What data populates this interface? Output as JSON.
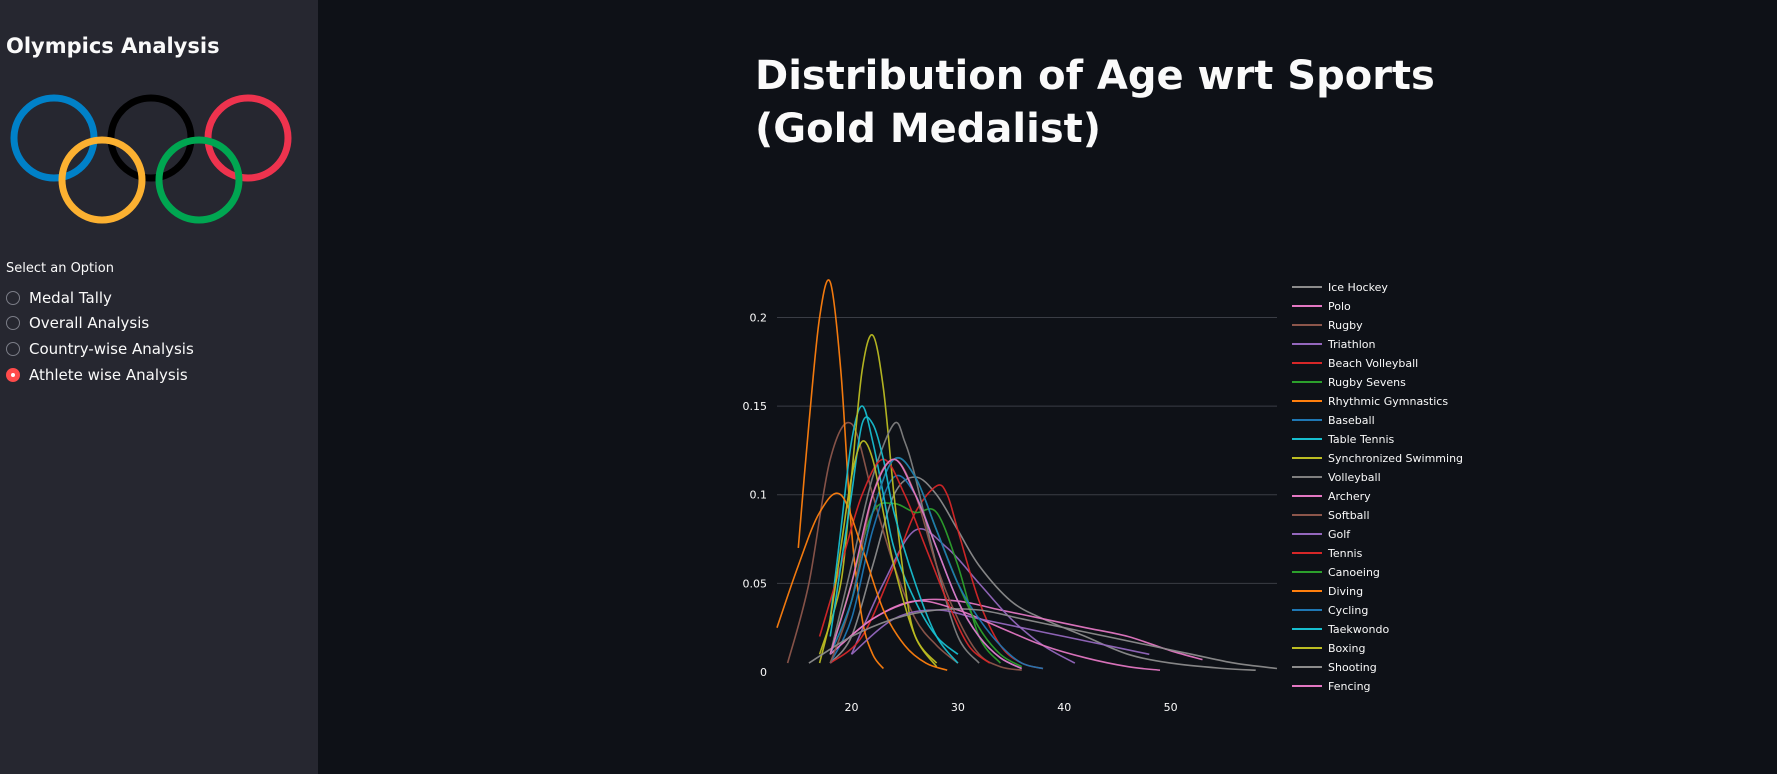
{
  "sidebar": {
    "title": "Olympics Analysis",
    "radio_label": "Select an Option",
    "options": [
      "Medal Tally",
      "Overall Analysis",
      "Country-wise Analysis",
      "Athlete wise Analysis"
    ],
    "selected_index": 3,
    "accent_color": "#ff4b4b"
  },
  "main": {
    "title": "Distribution of Age wrt Sports (Gold Medalist)"
  },
  "chart_data": {
    "type": "line",
    "title": "",
    "xlabel": "",
    "ylabel": "",
    "xlim": [
      13,
      60
    ],
    "ylim": [
      0,
      0.22
    ],
    "x_ticks": [
      20,
      30,
      40,
      50
    ],
    "y_ticks": [
      0,
      0.05,
      0.1,
      0.15,
      0.2
    ],
    "y_tick_labels": [
      "0",
      "0.05",
      "0.1",
      "0.15",
      "0.2"
    ],
    "grid": true,
    "legend_position": "right",
    "series": [
      {
        "name": "Ice Hockey",
        "color": "#8c8c8c",
        "x": [
          18,
          20,
          22,
          24,
          26,
          28,
          30,
          32,
          35,
          38,
          42,
          46,
          50,
          55,
          58
        ],
        "y": [
          0.005,
          0.02,
          0.06,
          0.1,
          0.11,
          0.1,
          0.08,
          0.06,
          0.04,
          0.03,
          0.02,
          0.01,
          0.005,
          0.002,
          0.001
        ]
      },
      {
        "name": "Polo",
        "color": "#e377c2",
        "x": [
          18,
          22,
          26,
          30,
          34,
          38,
          42,
          46,
          50,
          53
        ],
        "y": [
          0.01,
          0.03,
          0.04,
          0.04,
          0.035,
          0.03,
          0.025,
          0.02,
          0.012,
          0.007
        ]
      },
      {
        "name": "Rugby",
        "color": "#8c564b",
        "x": [
          14,
          16,
          18,
          20,
          22,
          24,
          26,
          28,
          30
        ],
        "y": [
          0.005,
          0.05,
          0.12,
          0.14,
          0.1,
          0.06,
          0.03,
          0.015,
          0.005
        ]
      },
      {
        "name": "Triathlon",
        "color": "#9467bd",
        "x": [
          20,
          23,
          26,
          29,
          32,
          35,
          38,
          41
        ],
        "y": [
          0.01,
          0.05,
          0.08,
          0.07,
          0.05,
          0.03,
          0.015,
          0.005
        ]
      },
      {
        "name": "Beach Volleyball",
        "color": "#d62728",
        "x": [
          18,
          21,
          24,
          26,
          28,
          29,
          30,
          32,
          34,
          36,
          38
        ],
        "y": [
          0.005,
          0.02,
          0.06,
          0.09,
          0.105,
          0.1,
          0.08,
          0.04,
          0.015,
          0.005,
          0.002
        ]
      },
      {
        "name": "Rugby Sevens",
        "color": "#2ca02c",
        "x": [
          18,
          20,
          22,
          24,
          26,
          28,
          30,
          32,
          34
        ],
        "y": [
          0.01,
          0.05,
          0.09,
          0.095,
          0.09,
          0.09,
          0.06,
          0.02,
          0.005
        ]
      },
      {
        "name": "Rhythmic Gymnastics",
        "color": "#ff7f0e",
        "x": [
          15,
          16,
          17,
          18,
          19,
          20,
          21,
          22,
          23
        ],
        "y": [
          0.07,
          0.14,
          0.2,
          0.22,
          0.17,
          0.08,
          0.03,
          0.01,
          0.002
        ]
      },
      {
        "name": "Baseball",
        "color": "#1f77b4",
        "x": [
          18,
          20,
          22,
          24,
          26,
          28,
          30,
          32,
          34,
          36
        ],
        "y": [
          0.005,
          0.03,
          0.08,
          0.11,
          0.1,
          0.07,
          0.04,
          0.02,
          0.008,
          0.002
        ]
      },
      {
        "name": "Table Tennis",
        "color": "#17becf",
        "x": [
          18,
          19,
          20,
          21,
          22,
          23,
          24,
          26,
          28,
          30
        ],
        "y": [
          0.03,
          0.08,
          0.13,
          0.15,
          0.13,
          0.1,
          0.07,
          0.04,
          0.02,
          0.01
        ]
      },
      {
        "name": "Synchronized Swimming",
        "color": "#bcbd22",
        "x": [
          17,
          19,
          20,
          21,
          22,
          23,
          24,
          25,
          26,
          28
        ],
        "y": [
          0.01,
          0.05,
          0.11,
          0.17,
          0.19,
          0.16,
          0.1,
          0.05,
          0.02,
          0.003
        ]
      },
      {
        "name": "Volleyball",
        "color": "#7f7f7f",
        "x": [
          18,
          20,
          22,
          24,
          25,
          26,
          28,
          30,
          32
        ],
        "y": [
          0.01,
          0.06,
          0.11,
          0.14,
          0.13,
          0.11,
          0.06,
          0.02,
          0.005
        ]
      },
      {
        "name": "Archery",
        "color": "#e377c2",
        "x": [
          18,
          22,
          26,
          30,
          34,
          38,
          42,
          46,
          49
        ],
        "y": [
          0.01,
          0.03,
          0.04,
          0.035,
          0.025,
          0.015,
          0.008,
          0.003,
          0.001
        ]
      },
      {
        "name": "Softball",
        "color": "#8c564b",
        "x": [
          18,
          20,
          22,
          24,
          26,
          28,
          30,
          32,
          34,
          36
        ],
        "y": [
          0.005,
          0.04,
          0.1,
          0.12,
          0.1,
          0.06,
          0.03,
          0.01,
          0.003,
          0.001
        ]
      },
      {
        "name": "Golf",
        "color": "#9467bd",
        "x": [
          20,
          24,
          28,
          32,
          36,
          40,
          44,
          48
        ],
        "y": [
          0.01,
          0.03,
          0.035,
          0.03,
          0.025,
          0.02,
          0.015,
          0.01
        ]
      },
      {
        "name": "Tennis",
        "color": "#d62728",
        "x": [
          17,
          19,
          21,
          23,
          25,
          27,
          29,
          31,
          33
        ],
        "y": [
          0.02,
          0.06,
          0.1,
          0.12,
          0.1,
          0.07,
          0.04,
          0.015,
          0.005
        ]
      },
      {
        "name": "Canoeing",
        "color": "#2ca02c",
        "x": [
          18,
          20,
          22,
          24,
          26,
          28,
          30,
          32,
          34,
          36
        ],
        "y": [
          0.01,
          0.04,
          0.09,
          0.12,
          0.11,
          0.08,
          0.05,
          0.025,
          0.01,
          0.003
        ]
      },
      {
        "name": "Diving",
        "color": "#ff7f0e",
        "x": [
          13,
          15,
          17,
          19,
          21,
          23,
          25,
          27,
          29
        ],
        "y": [
          0.025,
          0.06,
          0.09,
          0.1,
          0.07,
          0.035,
          0.015,
          0.005,
          0.001
        ]
      },
      {
        "name": "Cycling",
        "color": "#1f77b4",
        "x": [
          18,
          20,
          22,
          24,
          26,
          28,
          30,
          32,
          34,
          36,
          38
        ],
        "y": [
          0.01,
          0.04,
          0.09,
          0.12,
          0.11,
          0.08,
          0.05,
          0.03,
          0.015,
          0.005,
          0.002
        ]
      },
      {
        "name": "Taekwondo",
        "color": "#17becf",
        "x": [
          18,
          19,
          20,
          21,
          22,
          23,
          24,
          26,
          28,
          30
        ],
        "y": [
          0.02,
          0.06,
          0.1,
          0.14,
          0.14,
          0.12,
          0.09,
          0.05,
          0.02,
          0.005
        ]
      },
      {
        "name": "Boxing",
        "color": "#bcbd22",
        "x": [
          17,
          18,
          19,
          20,
          21,
          22,
          23,
          24,
          26,
          28
        ],
        "y": [
          0.005,
          0.03,
          0.07,
          0.11,
          0.13,
          0.12,
          0.09,
          0.06,
          0.02,
          0.005
        ]
      },
      {
        "name": "Shooting",
        "color": "#8c8c8c",
        "x": [
          16,
          20,
          24,
          28,
          32,
          36,
          40,
          44,
          48,
          52,
          56,
          60
        ],
        "y": [
          0.005,
          0.02,
          0.03,
          0.035,
          0.035,
          0.03,
          0.025,
          0.02,
          0.015,
          0.01,
          0.005,
          0.002
        ]
      },
      {
        "name": "Fencing",
        "color": "#e377c2",
        "x": [
          18,
          20,
          22,
          24,
          26,
          28,
          30,
          32,
          34,
          36
        ],
        "y": [
          0.01,
          0.05,
          0.1,
          0.12,
          0.1,
          0.07,
          0.04,
          0.02,
          0.008,
          0.002
        ]
      }
    ]
  }
}
